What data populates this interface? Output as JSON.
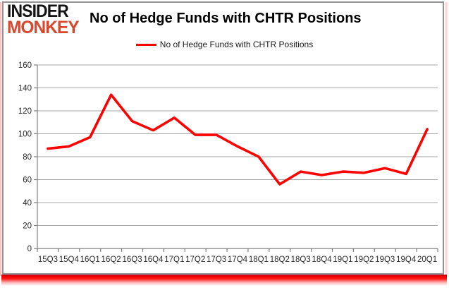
{
  "logo": {
    "line1": "INSIDER",
    "line2": "MONKEY"
  },
  "header": {
    "title": "No of Hedge Funds with CHTR Positions"
  },
  "legend": {
    "label": "No of Hedge Funds with CHTR Positions",
    "line_color": "#ff0000"
  },
  "colors": {
    "series_red": "#ff0000",
    "logo_red": "#d9472e",
    "grid": "#a6a6a6",
    "axis": "#808080",
    "tick_label": "#2b2b2b",
    "frame_border": "#949494"
  },
  "chart_data": {
    "type": "line",
    "title": "No of Hedge Funds with CHTR Positions",
    "categories": [
      "15Q3",
      "15Q4",
      "16Q1",
      "16Q2",
      "16Q3",
      "16Q4",
      "17Q1",
      "17Q2",
      "17Q3",
      "17Q4",
      "18Q1",
      "18Q2",
      "18Q3",
      "18Q4",
      "19Q1",
      "19Q2",
      "19Q3",
      "19Q4",
      "20Q1"
    ],
    "series": [
      {
        "name": "No of Hedge Funds with CHTR Positions",
        "color": "#ff0000",
        "values": [
          87,
          89,
          97,
          134,
          111,
          103,
          114,
          99,
          99,
          89,
          80,
          56,
          67,
          64,
          67,
          66,
          70,
          65,
          104
        ]
      }
    ],
    "xlabel": "",
    "ylabel": "",
    "ylim": [
      0,
      160
    ],
    "ytick_step": 20,
    "grid": true,
    "legend_position": "top-center"
  }
}
